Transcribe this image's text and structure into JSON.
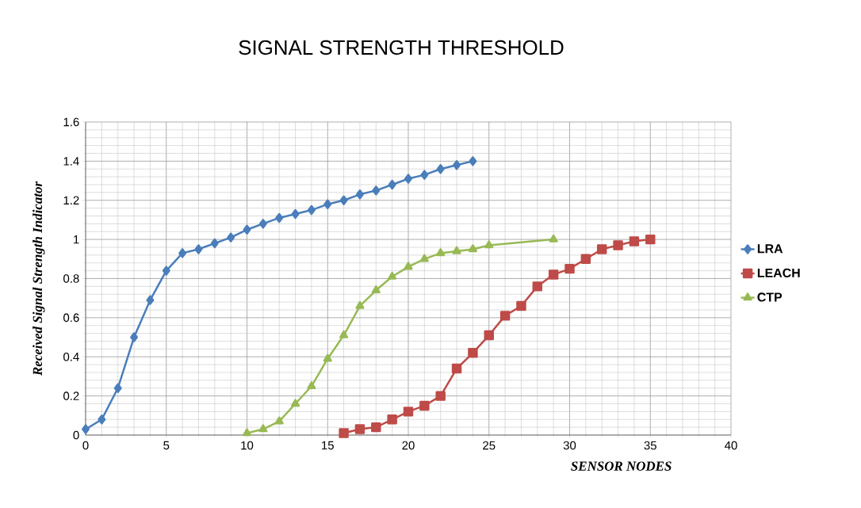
{
  "chart_data": {
    "type": "line",
    "title": "SIGNAL  STRENGTH   THRESHOLD",
    "xlabel": "SENSOR NODES",
    "ylabel": "Received  Signal Strength Indicator",
    "xlim": [
      0,
      40
    ],
    "xticks": [
      0,
      5,
      10,
      15,
      20,
      25,
      30,
      35,
      40
    ],
    "ylim": [
      0,
      1.6
    ],
    "yticks": [
      0,
      0.2,
      0.4,
      0.6,
      0.8,
      1,
      1.2,
      1.4,
      1.6
    ],
    "grid": true,
    "legend": "right",
    "series": [
      {
        "name": "LRA",
        "color": "#4a7ebb",
        "marker": "diamond",
        "x": [
          0,
          1,
          2,
          3,
          4,
          5,
          6,
          7,
          8,
          9,
          10,
          11,
          12,
          13,
          14,
          15,
          16,
          17,
          18,
          19,
          20,
          21,
          22,
          23,
          24
        ],
        "values": [
          0.03,
          0.08,
          0.24,
          0.5,
          0.69,
          0.84,
          0.93,
          0.95,
          0.98,
          1.01,
          1.05,
          1.08,
          1.11,
          1.13,
          1.15,
          1.18,
          1.2,
          1.23,
          1.25,
          1.28,
          1.31,
          1.33,
          1.36,
          1.38,
          1.4
        ]
      },
      {
        "name": "LEACH",
        "color": "#be4b48",
        "marker": "square",
        "x": [
          16,
          17,
          18,
          19,
          20,
          21,
          22,
          23,
          24,
          25,
          26,
          27,
          28,
          29,
          30,
          31,
          32,
          33,
          34,
          35
        ],
        "values": [
          0.01,
          0.03,
          0.04,
          0.08,
          0.12,
          0.15,
          0.2,
          0.34,
          0.42,
          0.51,
          0.61,
          0.66,
          0.76,
          0.82,
          0.85,
          0.9,
          0.95,
          0.97,
          0.99,
          1.0
        ]
      },
      {
        "name": "CTP",
        "color": "#98b954",
        "marker": "triangle",
        "x": [
          10,
          11,
          12,
          13,
          14,
          15,
          16,
          17,
          18,
          19,
          20,
          21,
          22,
          23,
          24,
          25,
          29
        ],
        "values": [
          0.01,
          0.03,
          0.07,
          0.16,
          0.25,
          0.39,
          0.51,
          0.66,
          0.74,
          0.81,
          0.86,
          0.9,
          0.93,
          0.94,
          0.95,
          0.97,
          1.0
        ]
      }
    ]
  }
}
